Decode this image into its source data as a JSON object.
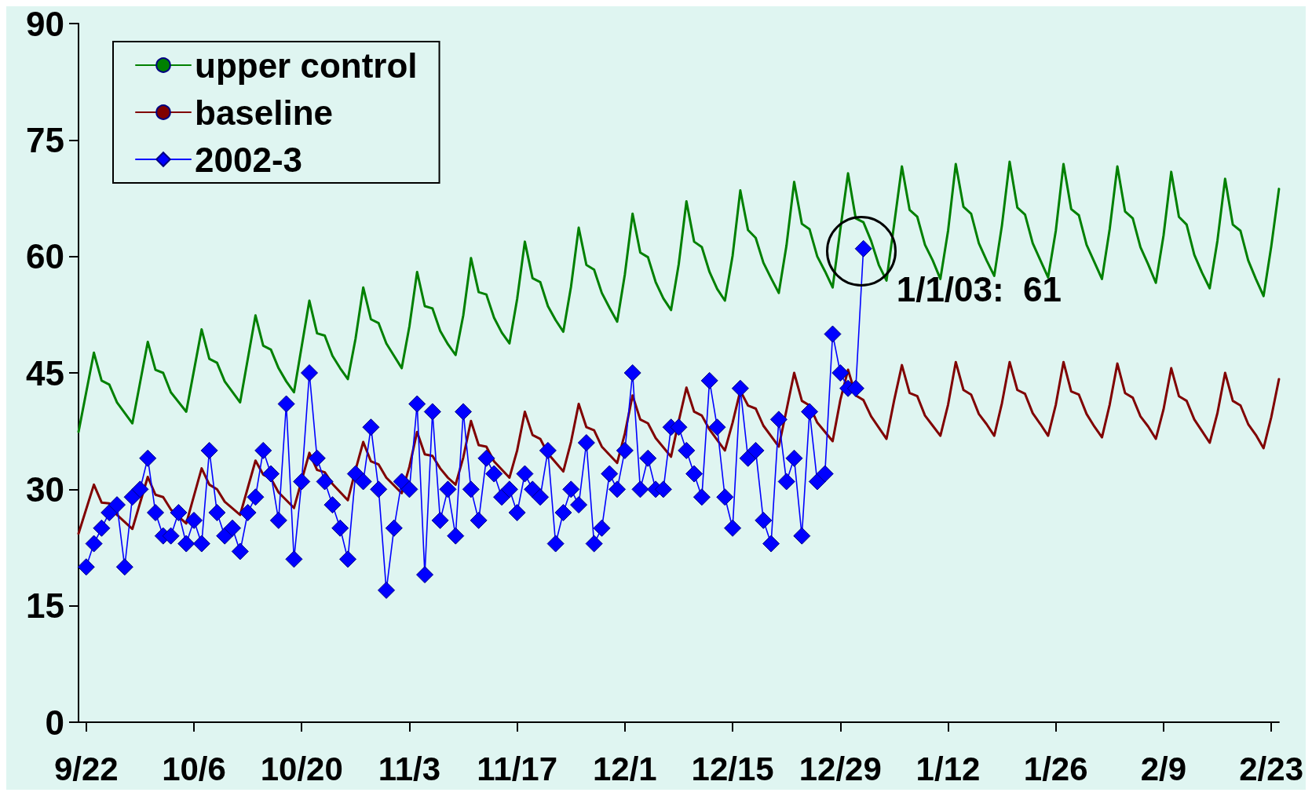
{
  "chart_data": {
    "type": "line",
    "xlim": [
      "2002-09-21",
      "2003-02-24"
    ],
    "ylim": [
      0,
      90
    ],
    "yticks": [
      0,
      15,
      30,
      45,
      60,
      75,
      90
    ],
    "xticks": [
      {
        "value": "2002-09-22",
        "label": "9/22"
      },
      {
        "value": "2002-10-06",
        "label": "10/6"
      },
      {
        "value": "2002-10-20",
        "label": "10/20"
      },
      {
        "value": "2002-11-03",
        "label": "11/3"
      },
      {
        "value": "2002-11-17",
        "label": "11/17"
      },
      {
        "value": "2002-12-01",
        "label": "12/1"
      },
      {
        "value": "2002-12-15",
        "label": "12/15"
      },
      {
        "value": "2002-12-29",
        "label": "12/29"
      },
      {
        "value": "2003-01-12",
        "label": "1/12"
      },
      {
        "value": "2003-01-26",
        "label": "1/26"
      },
      {
        "value": "2003-02-09",
        "label": "2/9"
      },
      {
        "value": "2003-02-23",
        "label": "2/23"
      }
    ],
    "grid": false,
    "legend": "top left",
    "line_style": "solid",
    "annotations": [
      {
        "text": "1/1/03:  61",
        "x": "2003-01-01",
        "y": 61
      }
    ],
    "series": [
      {
        "name": "upper control",
        "color": "#008000",
        "marker": "none",
        "x": [
          "2002-09-21",
          "2002-09-23",
          "2002-09-24",
          "2002-09-25",
          "2002-09-26",
          "2002-09-28",
          "2002-09-30",
          "2002-10-01",
          "2002-10-02",
          "2002-10-03",
          "2002-10-05",
          "2002-10-07",
          "2002-10-08",
          "2002-10-09",
          "2002-10-10",
          "2002-10-12",
          "2002-10-14",
          "2002-10-15",
          "2002-10-16",
          "2002-10-17",
          "2002-10-18",
          "2002-10-19",
          "2002-10-21",
          "2002-10-22",
          "2002-10-23",
          "2002-10-24",
          "2002-10-25",
          "2002-10-26",
          "2002-10-27",
          "2002-10-28",
          "2002-10-29",
          "2002-10-30",
          "2002-10-31",
          "2002-11-01",
          "2002-11-02",
          "2002-11-03",
          "2002-11-04",
          "2002-11-05",
          "2002-11-06",
          "2002-11-07",
          "2002-11-08",
          "2002-11-09",
          "2002-11-10",
          "2002-11-11",
          "2002-11-12",
          "2002-11-13",
          "2002-11-14",
          "2002-11-15",
          "2002-11-16",
          "2002-11-17",
          "2002-11-18",
          "2002-11-19",
          "2002-11-20",
          "2002-11-21",
          "2002-11-22",
          "2002-11-23",
          "2002-11-24",
          "2002-11-25",
          "2002-11-26",
          "2002-11-27",
          "2002-11-28",
          "2002-11-29",
          "2002-11-30",
          "2002-12-01",
          "2002-12-02",
          "2002-12-03",
          "2002-12-04",
          "2002-12-05",
          "2002-12-06",
          "2002-12-07",
          "2002-12-08",
          "2002-12-09",
          "2002-12-10",
          "2002-12-11",
          "2002-12-12",
          "2002-12-13",
          "2002-12-14",
          "2002-12-15",
          "2002-12-16",
          "2002-12-17",
          "2002-12-18",
          "2002-12-19",
          "2002-12-20",
          "2002-12-21",
          "2002-12-22",
          "2002-12-23",
          "2002-12-24",
          "2002-12-25",
          "2002-12-26",
          "2002-12-27",
          "2002-12-28",
          "2002-12-29",
          "2002-12-30",
          "2002-12-31",
          "2003-01-01",
          "2003-01-02",
          "2003-01-03",
          "2003-01-04",
          "2003-01-05",
          "2003-01-06",
          "2003-01-07",
          "2003-01-08",
          "2003-01-09",
          "2003-01-10",
          "2003-01-11",
          "2003-01-12",
          "2003-01-13",
          "2003-01-14",
          "2003-01-15",
          "2003-01-16",
          "2003-01-17",
          "2003-01-18",
          "2003-01-19",
          "2003-01-20",
          "2003-01-21",
          "2003-01-22",
          "2003-01-23",
          "2003-01-24",
          "2003-01-25",
          "2003-01-26",
          "2003-01-27",
          "2003-01-28",
          "2003-01-29",
          "2003-01-30",
          "2003-01-31",
          "2003-02-01",
          "2003-02-02",
          "2003-02-03",
          "2003-02-04",
          "2003-02-05",
          "2003-02-06",
          "2003-02-07",
          "2003-02-08",
          "2003-02-09",
          "2003-02-10",
          "2003-02-11",
          "2003-02-12",
          "2003-02-13",
          "2003-02-14",
          "2003-02-15",
          "2003-02-16",
          "2003-02-17",
          "2003-02-18",
          "2003-02-19",
          "2003-02-20",
          "2003-02-21",
          "2003-02-22",
          "2003-02-23",
          "2003-02-24"
        ],
        "values": [
          37.4,
          47.6,
          44.0,
          43.5,
          41.2,
          38.5,
          49.0,
          45.4,
          45.0,
          42.5,
          40.0,
          50.6,
          46.8,
          46.3,
          43.9,
          41.2,
          52.4,
          48.5,
          48.0,
          45.6,
          43.9,
          42.5,
          54.3,
          50.1,
          49.8,
          47.2,
          45.6,
          44.2,
          49.4,
          56.0,
          51.9,
          51.4,
          48.8,
          47.2,
          45.6,
          51.0,
          58.0,
          53.6,
          53.3,
          50.4,
          48.7,
          47.3,
          52.4,
          59.8,
          55.4,
          55.1,
          52.1,
          50.2,
          48.8,
          54.5,
          61.9,
          57.2,
          56.7,
          53.6,
          51.8,
          50.3,
          56.1,
          63.7,
          58.9,
          58.3,
          55.3,
          53.4,
          51.6,
          57.7,
          65.5,
          60.5,
          59.9,
          56.7,
          54.6,
          53.1,
          59.0,
          67.1,
          61.9,
          61.2,
          58.0,
          55.8,
          54.3,
          60.1,
          68.5,
          63.4,
          62.4,
          59.2,
          57.2,
          55.3,
          61.4,
          69.6,
          64.2,
          63.5,
          60.0,
          58.1,
          56.0,
          63.5,
          70.7,
          64.9,
          64.4,
          62.0,
          58.9,
          56.9,
          64.2,
          71.6,
          66.0,
          65.1,
          61.5,
          59.5,
          57.1,
          63.3,
          71.9,
          66.4,
          65.5,
          61.7,
          59.5,
          57.5,
          64.0,
          72.2,
          66.3,
          65.4,
          61.7,
          59.5,
          57.3,
          63.3,
          71.9,
          66.1,
          65.3,
          61.5,
          59.3,
          57.1,
          63.5,
          71.6,
          65.8,
          64.9,
          61.2,
          59.0,
          56.6,
          62.7,
          70.9,
          65.1,
          64.1,
          60.2,
          57.9,
          55.9,
          62.0,
          70.0,
          64.1,
          63.3,
          59.5,
          57.1,
          54.9,
          61.3,
          68.7
        ]
      },
      {
        "name": "baseline",
        "color": "#800000",
        "marker": "none",
        "x": [
          "2002-09-21",
          "2002-09-23",
          "2002-09-24",
          "2002-09-25",
          "2002-09-26",
          "2002-09-28",
          "2002-09-30",
          "2002-10-01",
          "2002-10-02",
          "2002-10-03",
          "2002-10-05",
          "2002-10-07",
          "2002-10-08",
          "2002-10-09",
          "2002-10-10",
          "2002-10-12",
          "2002-10-14",
          "2002-10-15",
          "2002-10-16",
          "2002-10-17",
          "2002-10-19",
          "2002-10-21",
          "2002-10-22",
          "2002-10-23",
          "2002-10-24",
          "2002-10-26",
          "2002-10-27",
          "2002-10-28",
          "2002-10-29",
          "2002-10-30",
          "2002-10-31",
          "2002-11-02",
          "2002-11-03",
          "2002-11-04",
          "2002-11-05",
          "2002-11-06",
          "2002-11-07",
          "2002-11-08",
          "2002-11-09",
          "2002-11-10",
          "2002-11-11",
          "2002-11-12",
          "2002-11-13",
          "2002-11-14",
          "2002-11-16",
          "2002-11-17",
          "2002-11-18",
          "2002-11-19",
          "2002-11-20",
          "2002-11-21",
          "2002-11-23",
          "2002-11-24",
          "2002-11-25",
          "2002-11-26",
          "2002-11-27",
          "2002-11-28",
          "2002-11-30",
          "2002-12-01",
          "2002-12-02",
          "2002-12-03",
          "2002-12-04",
          "2002-12-05",
          "2002-12-07",
          "2002-12-08",
          "2002-12-09",
          "2002-12-10",
          "2002-12-11",
          "2002-12-12",
          "2002-12-14",
          "2002-12-15",
          "2002-12-16",
          "2002-12-17",
          "2002-12-18",
          "2002-12-19",
          "2002-12-21",
          "2002-12-22",
          "2002-12-23",
          "2002-12-24",
          "2002-12-25",
          "2002-12-26",
          "2002-12-28",
          "2002-12-29",
          "2002-12-30",
          "2002-12-31",
          "2003-01-01",
          "2003-01-02",
          "2003-01-04",
          "2003-01-05",
          "2003-01-06",
          "2003-01-07",
          "2003-01-08",
          "2003-01-09",
          "2003-01-10",
          "2003-01-11",
          "2003-01-12",
          "2003-01-13",
          "2003-01-14",
          "2003-01-15",
          "2003-01-16",
          "2003-01-17",
          "2003-01-18",
          "2003-01-19",
          "2003-01-20",
          "2003-01-21",
          "2003-01-22",
          "2003-01-23",
          "2003-01-24",
          "2003-01-25",
          "2003-01-26",
          "2003-01-27",
          "2003-01-28",
          "2003-01-29",
          "2003-01-30",
          "2003-01-31",
          "2003-02-01",
          "2003-02-02",
          "2003-02-03",
          "2003-02-04",
          "2003-02-05",
          "2003-02-06",
          "2003-02-07",
          "2003-02-08",
          "2003-02-09",
          "2003-02-10",
          "2003-02-11",
          "2003-02-12",
          "2003-02-13",
          "2003-02-14",
          "2003-02-15",
          "2003-02-16",
          "2003-02-17",
          "2003-02-18",
          "2003-02-19",
          "2003-02-20",
          "2003-02-21",
          "2003-02-22",
          "2003-02-23",
          "2003-02-24"
        ],
        "values": [
          24.3,
          30.6,
          28.3,
          28.2,
          26.7,
          24.9,
          31.6,
          29.3,
          29.0,
          27.4,
          25.6,
          32.7,
          30.6,
          30.0,
          28.4,
          26.7,
          33.7,
          31.9,
          31.4,
          29.6,
          27.6,
          34.7,
          32.5,
          32.2,
          30.7,
          28.6,
          32.5,
          36.1,
          33.6,
          33.2,
          31.5,
          29.5,
          32.9,
          37.4,
          34.5,
          34.3,
          32.7,
          31.5,
          30.6,
          34.1,
          38.8,
          35.7,
          35.5,
          33.6,
          31.5,
          35.0,
          40.0,
          37.0,
          36.5,
          34.6,
          32.3,
          36.1,
          41.0,
          38.0,
          37.6,
          35.5,
          33.4,
          37.2,
          42.1,
          39.0,
          38.5,
          36.6,
          34.2,
          38.8,
          43.1,
          40.0,
          39.5,
          37.7,
          35.0,
          38.6,
          42.7,
          40.8,
          40.4,
          38.2,
          35.5,
          40.2,
          45.0,
          41.4,
          40.8,
          38.6,
          36.2,
          41.5,
          45.4,
          42.1,
          41.5,
          39.4,
          36.5,
          41.5,
          46.0,
          42.4,
          42.0,
          39.5,
          38.2,
          36.9,
          40.9,
          46.4,
          42.8,
          42.2,
          39.7,
          38.4,
          36.9,
          41.1,
          46.4,
          42.8,
          42.3,
          39.8,
          38.4,
          36.9,
          40.9,
          46.4,
          42.6,
          42.2,
          39.7,
          38.1,
          36.7,
          40.9,
          46.2,
          42.4,
          41.8,
          39.4,
          38.1,
          36.5,
          40.3,
          45.6,
          42.0,
          41.4,
          39.0,
          37.5,
          36.0,
          39.8,
          45.0,
          41.4,
          40.8,
          38.4,
          37.0,
          35.3,
          39.3,
          44.2
        ]
      },
      {
        "name": "2002-3",
        "color": "#0000ff",
        "marker": "diamond",
        "x": [
          "2002-09-22",
          "2002-09-23",
          "2002-09-24",
          "2002-09-25",
          "2002-09-26",
          "2002-09-27",
          "2002-09-28",
          "2002-09-29",
          "2002-09-30",
          "2002-10-01",
          "2002-10-02",
          "2002-10-03",
          "2002-10-04",
          "2002-10-05",
          "2002-10-06",
          "2002-10-07",
          "2002-10-08",
          "2002-10-09",
          "2002-10-10",
          "2002-10-11",
          "2002-10-12",
          "2002-10-13",
          "2002-10-14",
          "2002-10-15",
          "2002-10-16",
          "2002-10-17",
          "2002-10-18",
          "2002-10-19",
          "2002-10-20",
          "2002-10-21",
          "2002-10-22",
          "2002-10-23",
          "2002-10-24",
          "2002-10-25",
          "2002-10-26",
          "2002-10-27",
          "2002-10-28",
          "2002-10-29",
          "2002-10-30",
          "2002-10-31",
          "2002-11-01",
          "2002-11-02",
          "2002-11-03",
          "2002-11-04",
          "2002-11-05",
          "2002-11-06",
          "2002-11-07",
          "2002-11-08",
          "2002-11-09",
          "2002-11-10",
          "2002-11-11",
          "2002-11-12",
          "2002-11-13",
          "2002-11-14",
          "2002-11-15",
          "2002-11-16",
          "2002-11-17",
          "2002-11-18",
          "2002-11-19",
          "2002-11-20",
          "2002-11-21",
          "2002-11-22",
          "2002-11-23",
          "2002-11-24",
          "2002-11-25",
          "2002-11-26",
          "2002-11-27",
          "2002-11-28",
          "2002-11-29",
          "2002-11-30",
          "2002-12-01",
          "2002-12-02",
          "2002-12-03",
          "2002-12-04",
          "2002-12-05",
          "2002-12-06",
          "2002-12-07",
          "2002-12-08",
          "2002-12-09",
          "2002-12-10",
          "2002-12-11",
          "2002-12-12",
          "2002-12-13",
          "2002-12-14",
          "2002-12-15",
          "2002-12-16",
          "2002-12-17",
          "2002-12-18",
          "2002-12-19",
          "2002-12-20",
          "2002-12-21",
          "2002-12-22",
          "2002-12-23",
          "2002-12-24",
          "2002-12-25",
          "2002-12-26",
          "2002-12-27",
          "2002-12-28",
          "2002-12-29",
          "2002-12-30",
          "2002-12-31",
          "2003-01-01"
        ],
        "values": [
          20,
          23,
          25,
          27,
          28,
          20,
          29,
          30,
          34,
          27,
          24,
          24,
          27,
          23,
          26,
          23,
          35,
          27,
          24,
          25,
          22,
          27,
          29,
          35,
          32,
          26,
          41,
          21,
          31,
          45,
          34,
          31,
          28,
          25,
          21,
          32,
          31,
          38,
          30,
          17,
          25,
          31,
          30,
          41,
          19,
          40,
          26,
          30,
          24,
          40,
          30,
          26,
          34,
          32,
          29,
          30,
          27,
          32,
          30,
          29,
          35,
          23,
          27,
          30,
          28,
          36,
          23,
          25,
          32,
          30,
          35,
          45,
          30,
          34,
          30,
          30,
          38,
          38,
          35,
          32,
          29,
          44,
          38,
          29,
          25,
          43,
          34,
          35,
          26,
          23,
          39,
          31,
          34,
          24,
          40,
          31,
          32,
          50,
          45,
          43,
          43,
          61
        ]
      }
    ]
  }
}
